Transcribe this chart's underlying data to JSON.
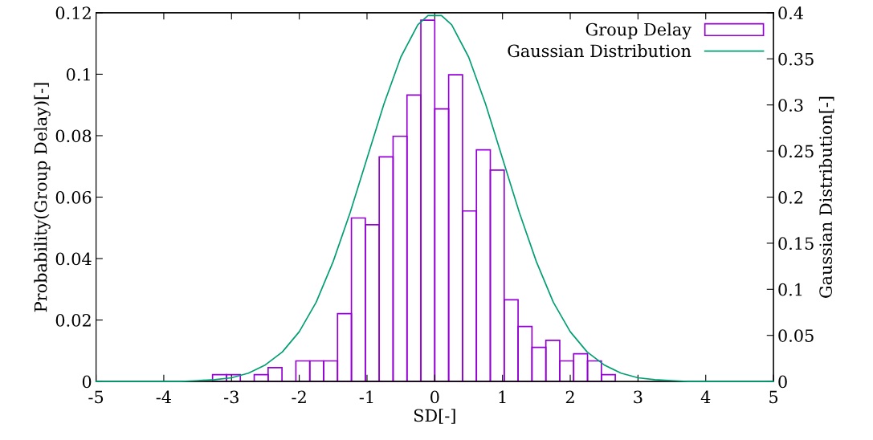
{
  "chart_data": {
    "type": "histogram",
    "xlabel": "SD[-]",
    "ylabel": "Probability(Group Delay)[-]",
    "y2label": "Gaussian Distribution[-]",
    "bins": [
      -3.28,
      -3.075,
      -2.87,
      -2.665,
      -2.46,
      -2.255,
      -2.05,
      -1.845,
      -1.64,
      -1.435,
      -1.23,
      -1.025,
      -0.82,
      -0.615,
      -0.41,
      -0.205,
      0,
      0.205,
      0.41,
      0.615,
      0.82,
      1.025,
      1.23,
      1.435,
      1.64,
      1.845,
      2.05,
      2.255,
      2.46,
      2.665
    ],
    "series": [
      {
        "name": "Group Delay",
        "color": "#9400d3",
        "values": [
          0.0022,
          0.0022,
          0,
          0.0022,
          0.0045,
          0,
          0.0067,
          0.0067,
          0.0067,
          0.0221,
          0.0532,
          0.051,
          0.0731,
          0.0798,
          0.0932,
          0.1176,
          0.0887,
          0.0998,
          0.0555,
          0.0754,
          0.0688,
          0.0266,
          0.0179,
          0.0111,
          0.0134,
          0.0067,
          0.009,
          0.0067,
          0.0022
        ]
      },
      {
        "name": "Gaussian Distribution",
        "type": "line",
        "axis": "y2",
        "color": "#009e73",
        "x": [
          -5,
          -4.5,
          -4,
          -3.75,
          -3.5,
          -3.25,
          -3,
          -2.75,
          -2.5,
          -2.25,
          -2,
          -1.75,
          -1.5,
          -1.25,
          -1,
          -0.75,
          -0.5,
          -0.25,
          -0.1,
          0.1,
          0.25,
          0.5,
          0.75,
          1,
          1.25,
          1.5,
          1.75,
          2,
          2.25,
          2.5,
          2.75,
          3,
          3.25,
          3.5,
          3.75,
          4,
          4.5,
          5
        ],
        "values": [
          0,
          0,
          0,
          0,
          0.001,
          0.002,
          0.004,
          0.009,
          0.018,
          0.032,
          0.054,
          0.086,
          0.13,
          0.183,
          0.242,
          0.301,
          0.352,
          0.387,
          0.397,
          0.397,
          0.387,
          0.352,
          0.301,
          0.242,
          0.183,
          0.13,
          0.086,
          0.054,
          0.032,
          0.018,
          0.009,
          0.004,
          0.002,
          0.001,
          0,
          0,
          0,
          0
        ]
      }
    ],
    "xlim": [
      -5,
      5
    ],
    "xticks": [
      -5,
      -4,
      -3,
      -2,
      -1,
      0,
      1,
      2,
      3,
      4,
      5
    ],
    "ylim": [
      0,
      0.12
    ],
    "yticks": [
      0,
      0.02,
      0.04,
      0.06,
      0.08,
      0.1,
      0.12
    ],
    "y2lim": [
      0,
      0.4
    ],
    "y2ticks": [
      0,
      0.05,
      0.1,
      0.15,
      0.2,
      0.25,
      0.3,
      0.35,
      0.4
    ],
    "legend": "top right",
    "grid": false
  }
}
